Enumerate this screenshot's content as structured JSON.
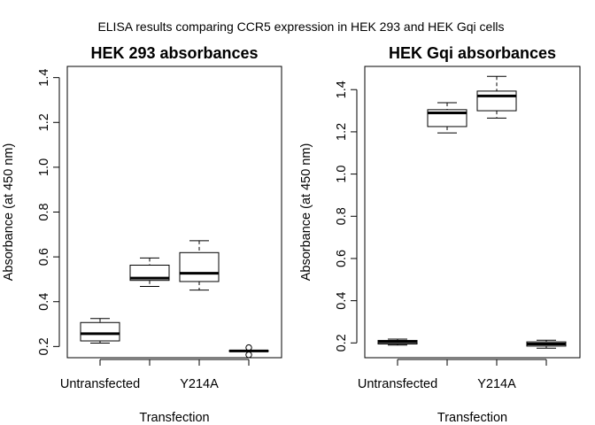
{
  "figure": {
    "suptitle": "ELISA results comparing CCR5 expression in HEK 293 and HEK Gqi cells"
  },
  "chart_data": [
    {
      "type": "boxplot",
      "title": "HEK 293 absorbances",
      "xlabel": "Transfection",
      "ylabel": "Absorbance (at 450 nm)",
      "ylim": [
        0.15,
        1.45
      ],
      "yticks": [
        0.2,
        0.4,
        0.6,
        0.8,
        1.0,
        1.2,
        1.4
      ],
      "ytick_labels": [
        "0.2",
        "0.4",
        "0.6",
        "0.8",
        "1.0",
        "1.2",
        "1.4"
      ],
      "categories": [
        "Untransfected",
        "",
        "Y214A",
        ""
      ],
      "boxes": [
        {
          "whisker_low": 0.215,
          "q1": 0.225,
          "median": 0.257,
          "q3": 0.307,
          "whisker_high": 0.325,
          "outliers": []
        },
        {
          "whisker_low": 0.468,
          "q1": 0.495,
          "median": 0.505,
          "q3": 0.563,
          "whisker_high": 0.595,
          "outliers": []
        },
        {
          "whisker_low": 0.452,
          "q1": 0.49,
          "median": 0.527,
          "q3": 0.619,
          "whisker_high": 0.672,
          "outliers": []
        },
        {
          "whisker_low": 0.178,
          "q1": 0.178,
          "median": 0.18,
          "q3": 0.182,
          "whisker_high": 0.182,
          "outliers": [
            0.195,
            0.163
          ]
        }
      ],
      "grid": false,
      "legend": "none"
    },
    {
      "type": "boxplot",
      "title": "HEK Gqi absorbances",
      "xlabel": "Transfection",
      "ylabel": "Absorbance (at 450 nm)",
      "ylim": [
        0.13,
        1.51
      ],
      "yticks": [
        0.2,
        0.4,
        0.6,
        0.8,
        1.0,
        1.2,
        1.4
      ],
      "ytick_labels": [
        "0.2",
        "0.4",
        "0.6",
        "0.8",
        "1.0",
        "1.2",
        "1.4"
      ],
      "categories": [
        "Untransfected",
        "",
        "Y214A",
        ""
      ],
      "boxes": [
        {
          "whisker_low": 0.19,
          "q1": 0.195,
          "median": 0.205,
          "q3": 0.212,
          "whisker_high": 0.218,
          "outliers": []
        },
        {
          "whisker_low": 1.195,
          "q1": 1.225,
          "median": 1.29,
          "q3": 1.305,
          "whisker_high": 1.338,
          "outliers": []
        },
        {
          "whisker_low": 1.265,
          "q1": 1.3,
          "median": 1.37,
          "q3": 1.393,
          "whisker_high": 1.463,
          "outliers": []
        },
        {
          "whisker_low": 0.175,
          "q1": 0.185,
          "median": 0.195,
          "q3": 0.205,
          "whisker_high": 0.213,
          "outliers": []
        }
      ],
      "grid": false,
      "legend": "none"
    }
  ]
}
